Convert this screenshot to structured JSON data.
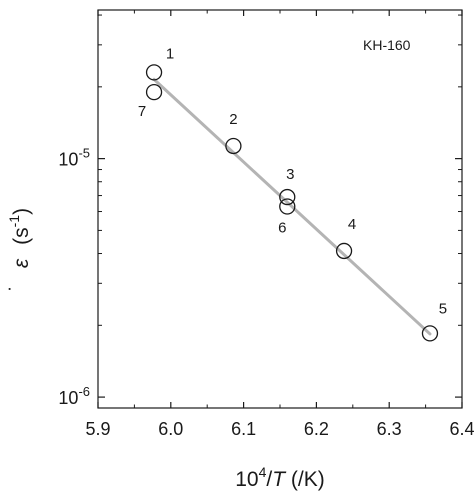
{
  "chart_data": {
    "type": "scatter",
    "title": "",
    "annotation": "KH-160",
    "xlabel": {
      "base": "10",
      "sup": "4",
      "slash": "/",
      "var": "T",
      "unit": " (/K)"
    },
    "ylabel": {
      "symbol": "ε",
      "unit_open": "(s",
      "unit_sup": "-1",
      "unit_close": ")"
    },
    "x_scale": "linear",
    "y_scale": "log",
    "xlim": [
      5.9,
      6.4
    ],
    "ylim": [
      9e-07,
      4.2e-05
    ],
    "x_ticks": [
      "5.9",
      "6.0",
      "6.1",
      "6.2",
      "6.3",
      "6.4"
    ],
    "y_ticks": [
      {
        "value": 1e-05,
        "base": "10",
        "exp": "-5"
      },
      {
        "value": 1e-06,
        "base": "10",
        "exp": "-6"
      }
    ],
    "grid": false,
    "legend": "none",
    "points": [
      {
        "label": "1",
        "x": 5.977,
        "y": 2.3e-05
      },
      {
        "label": "7",
        "x": 5.977,
        "y": 1.9e-05
      },
      {
        "label": "2",
        "x": 6.086,
        "y": 1.13e-05
      },
      {
        "label": "3",
        "x": 6.16,
        "y": 6.9e-06
      },
      {
        "label": "6",
        "x": 6.16,
        "y": 6.3e-06
      },
      {
        "label": "4",
        "x": 6.238,
        "y": 4.1e-06
      },
      {
        "label": "5",
        "x": 6.356,
        "y": 1.85e-06
      }
    ],
    "fit_line": {
      "x": [
        5.977,
        6.356
      ],
      "y": [
        2.15e-05,
        1.84e-06
      ]
    },
    "colors": {
      "marker": "#1a1a1a",
      "fit_line": "#b4b4b4",
      "axis": "#1a1a1a"
    }
  }
}
